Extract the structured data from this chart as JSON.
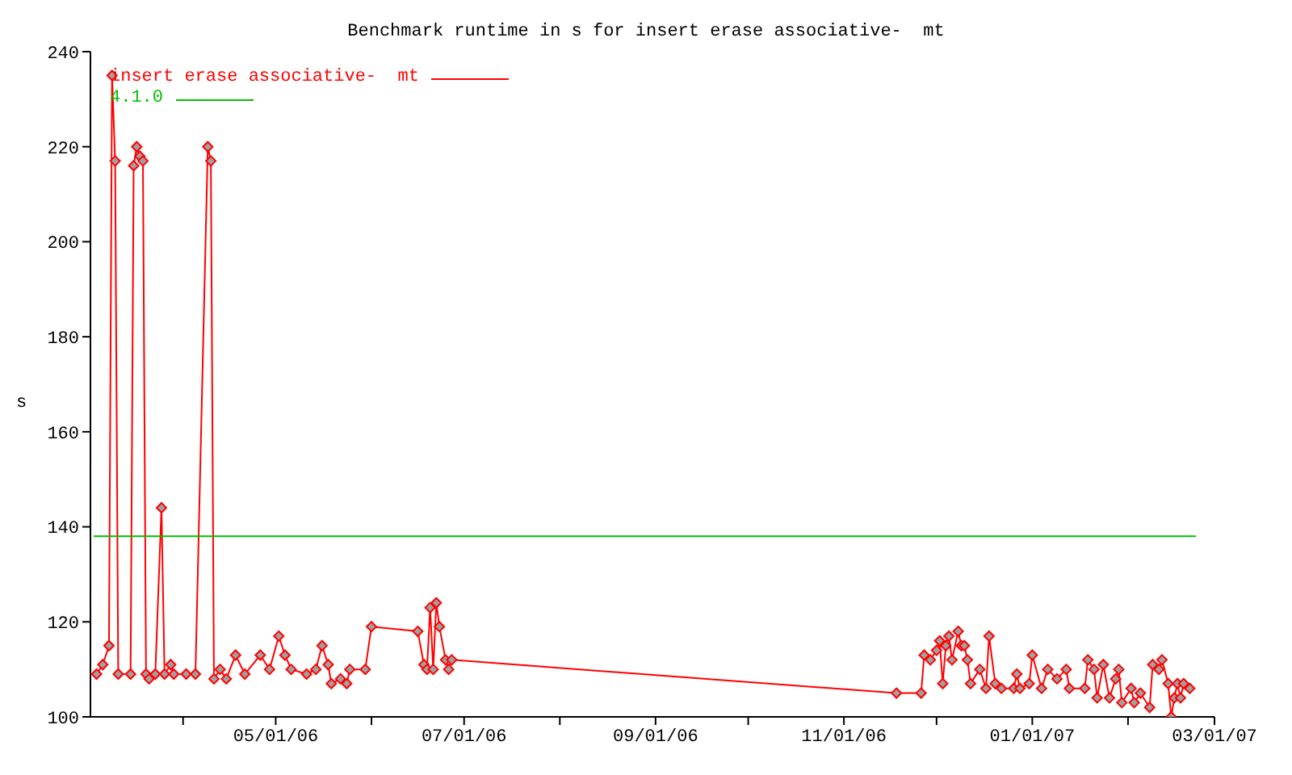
{
  "chart_data": {
    "type": "line",
    "title": "Benchmark runtime in s for insert erase associative-  mt",
    "ylabel": "s",
    "xlim": [
      "2006-03-02",
      "2007-03-01"
    ],
    "xticks": [
      {
        "value": "2006-04-01",
        "label": null
      },
      {
        "value": "2006-05-01",
        "label": "05/01/06"
      },
      {
        "value": "2006-06-01",
        "label": null
      },
      {
        "value": "2006-07-01",
        "label": "07/01/06"
      },
      {
        "value": "2006-08-01",
        "label": null
      },
      {
        "value": "2006-09-01",
        "label": "09/01/06"
      },
      {
        "value": "2006-10-01",
        "label": null
      },
      {
        "value": "2006-11-01",
        "label": "11/01/06"
      },
      {
        "value": "2006-12-01",
        "label": null
      },
      {
        "value": "2007-01-01",
        "label": "01/01/07"
      },
      {
        "value": "2007-02-01",
        "label": null
      },
      {
        "value": "2007-03-01",
        "label": "03/01/07"
      }
    ],
    "ylim": [
      100,
      240
    ],
    "yticks": [
      100,
      120,
      140,
      160,
      180,
      200,
      220,
      240
    ],
    "legend": "top left",
    "marker": "diamond",
    "line_style": "solid",
    "series": [
      {
        "name": "insert erase associative-  mt",
        "color": "#ff0000",
        "x": [
          "2006-03-04",
          "2006-03-06",
          "2006-03-08",
          "2006-03-09",
          "2006-03-10",
          "2006-03-11",
          "2006-03-15",
          "2006-03-16",
          "2006-03-17",
          "2006-03-18",
          "2006-03-19",
          "2006-03-20",
          "2006-03-21",
          "2006-03-23",
          "2006-03-25",
          "2006-03-26",
          "2006-03-28",
          "2006-03-29",
          "2006-04-02",
          "2006-04-05",
          "2006-04-09",
          "2006-04-10",
          "2006-04-11",
          "2006-04-13",
          "2006-04-15",
          "2006-04-18",
          "2006-04-21",
          "2006-04-26",
          "2006-04-29",
          "2006-05-02",
          "2006-05-04",
          "2006-05-06",
          "2006-05-11",
          "2006-05-14",
          "2006-05-16",
          "2006-05-18",
          "2006-05-19",
          "2006-05-22",
          "2006-05-24",
          "2006-05-25",
          "2006-05-30",
          "2006-06-01",
          "2006-06-16",
          "2006-06-18",
          "2006-06-19",
          "2006-06-20",
          "2006-06-21",
          "2006-06-22",
          "2006-06-23",
          "2006-06-25",
          "2006-06-26",
          "2006-06-27",
          "2006-11-18",
          "2006-11-26",
          "2006-11-27",
          "2006-11-29",
          "2006-12-01",
          "2006-12-02",
          "2006-12-03",
          "2006-12-04",
          "2006-12-05",
          "2006-12-06",
          "2006-12-08",
          "2006-12-09",
          "2006-12-10",
          "2006-12-11",
          "2006-12-12",
          "2006-12-15",
          "2006-12-17",
          "2006-12-18",
          "2006-12-20",
          "2006-12-22",
          "2006-12-26",
          "2006-12-27",
          "2006-12-28",
          "2006-12-31",
          "2007-01-01",
          "2007-01-04",
          "2007-01-06",
          "2007-01-09",
          "2007-01-12",
          "2007-01-13",
          "2007-01-18",
          "2007-01-19",
          "2007-01-21",
          "2007-01-22",
          "2007-01-24",
          "2007-01-26",
          "2007-01-28",
          "2007-01-29",
          "2007-01-30",
          "2007-02-02",
          "2007-02-03",
          "2007-02-05",
          "2007-02-08",
          "2007-02-09",
          "2007-02-11",
          "2007-02-12",
          "2007-02-14",
          "2007-02-15",
          "2007-02-16",
          "2007-02-17",
          "2007-02-18",
          "2007-02-19",
          "2007-02-21"
        ],
        "values": [
          109,
          111,
          115,
          235,
          217,
          109,
          109,
          216,
          220,
          218,
          217,
          109,
          108,
          109,
          144,
          109,
          111,
          109,
          109,
          109,
          220,
          217,
          108,
          110,
          108,
          113,
          109,
          113,
          110,
          117,
          113,
          110,
          109,
          110,
          115,
          111,
          107,
          108,
          107,
          110,
          110,
          119,
          118,
          111,
          110,
          123,
          110,
          124,
          119,
          112,
          110,
          112,
          105,
          105,
          113,
          112,
          114,
          116,
          107,
          115,
          117,
          112,
          118,
          115,
          115,
          112,
          107,
          110,
          106,
          117,
          107,
          106,
          106,
          109,
          106,
          107,
          113,
          106,
          110,
          108,
          110,
          106,
          106,
          112,
          110,
          104,
          111,
          104,
          108,
          110,
          103,
          106,
          103,
          105,
          102,
          111,
          110,
          112,
          107,
          100,
          104,
          107,
          104,
          107,
          106
        ]
      },
      {
        "name": "4.1.0",
        "color": "#00c000",
        "x": [
          "2006-03-03",
          "2007-02-23"
        ],
        "values": [
          138,
          138
        ],
        "marker": "none"
      }
    ]
  }
}
